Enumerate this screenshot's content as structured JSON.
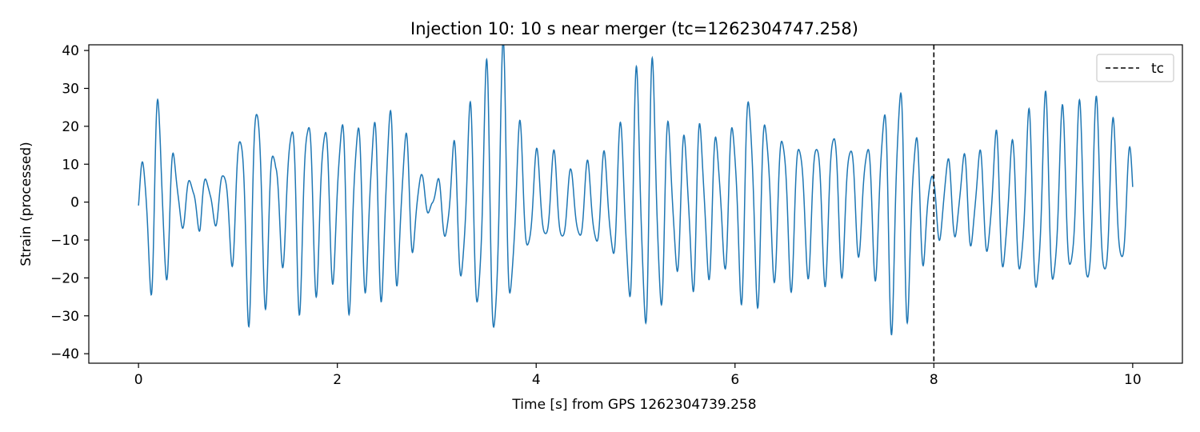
{
  "chart_data": {
    "type": "line",
    "title": "Injection 10: 10 s near merger (tc=1262304747.258)",
    "xlabel": "Time [s] from GPS 1262304739.258",
    "ylabel": "Strain (processed)",
    "xlim": [
      -0.5,
      10.5
    ],
    "ylim": [
      -42.5,
      41.5
    ],
    "xticks": [
      0,
      2,
      4,
      6,
      8,
      10
    ],
    "yticks": [
      -40,
      -30,
      -20,
      -10,
      0,
      10,
      20,
      30,
      40
    ],
    "tick_labels_x": [
      "0",
      "2",
      "4",
      "6",
      "8",
      "10"
    ],
    "tick_labels_y": [
      "−40",
      "−30",
      "−20",
      "−10",
      "0",
      "10",
      "20",
      "30",
      "40"
    ],
    "grid": false,
    "legend_position": "top-right",
    "series": [
      {
        "kind": "waveform",
        "color": "#1f77b4",
        "x_start": 0,
        "x_end": 10,
        "envelope_x": [
          0,
          0.1,
          0.22,
          0.27,
          0.4,
          0.55,
          0.62,
          0.72,
          0.85,
          1.0,
          1.1,
          1.2,
          1.3,
          1.38,
          1.5,
          1.6,
          1.7,
          1.82,
          1.98,
          2.1,
          2.25,
          2.38,
          2.5,
          2.62,
          2.75,
          2.85,
          2.95,
          3.1,
          3.25,
          3.38,
          3.5,
          3.6,
          3.7,
          3.78,
          3.9,
          4.05,
          4.2,
          4.35,
          4.5,
          4.7,
          4.85,
          4.95,
          5.05,
          5.2,
          5.32,
          5.45,
          5.6,
          5.75,
          5.9,
          6.05,
          6.15,
          6.25,
          6.4,
          6.55,
          6.7,
          6.85,
          7.0,
          7.12,
          7.25,
          7.38,
          7.5,
          7.6,
          7.7,
          7.8,
          7.9,
          8.0,
          8.1,
          8.2,
          8.35,
          8.5,
          8.65,
          8.8,
          8.95,
          9.1,
          9.25,
          9.4,
          9.55,
          9.7,
          9.85,
          10.0
        ],
        "envelope_y": [
          6,
          20,
          29,
          20,
          8,
          4,
          8,
          4,
          8,
          18,
          27,
          29,
          22,
          12,
          17,
          27,
          22,
          22,
          18,
          26,
          20,
          22,
          25,
          20,
          14,
          6,
          2,
          10,
          20,
          26,
          33,
          38,
          36,
          20,
          15,
          10,
          12,
          8,
          10,
          12,
          18,
          28,
          33,
          34,
          20,
          16,
          22,
          18,
          16,
          24,
          28,
          24,
          18,
          20,
          16,
          18,
          20,
          16,
          13,
          16,
          25,
          32,
          31,
          20,
          14,
          6,
          12,
          9,
          12,
          12,
          18,
          15,
          22,
          26,
          22,
          20,
          25,
          22,
          18,
          12
        ],
        "carrier_hz": 6.05,
        "offset_y": -3
      },
      {
        "name": "tc",
        "kind": "vline",
        "x": 8,
        "style": "dashed",
        "color": "#000000"
      }
    ]
  }
}
